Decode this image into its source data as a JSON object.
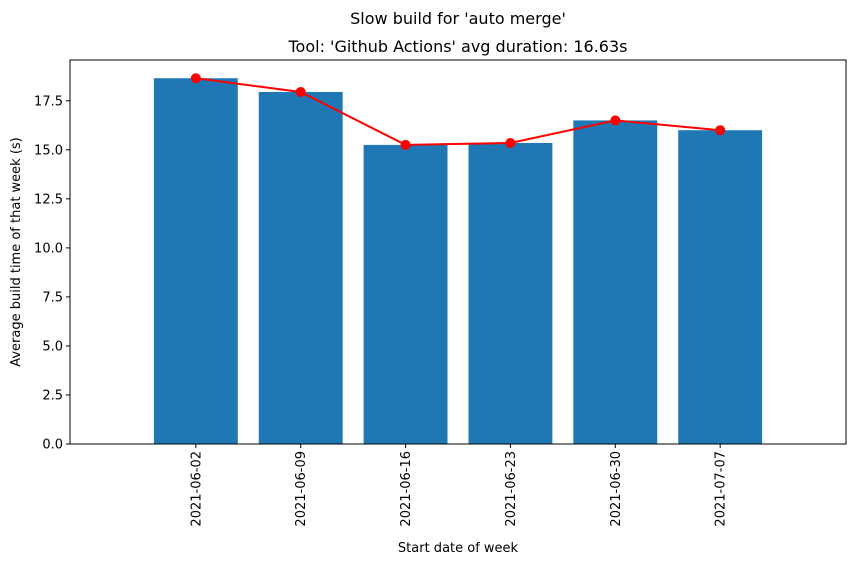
{
  "chart_data": {
    "type": "bar",
    "suptitle": "Slow build for 'auto merge'",
    "title": "Tool: 'Github Actions' avg duration: 16.63s",
    "xlabel": "Start date of week",
    "ylabel": "Average build time of that week (s)",
    "categories": [
      "2021-06-02",
      "2021-06-09",
      "2021-06-16",
      "2021-06-23",
      "2021-06-30",
      "2021-07-07"
    ],
    "series": [
      {
        "values": [
          18.65,
          17.95,
          15.25,
          15.35,
          16.5,
          16.0
        ],
        "kind": "bar",
        "color": "#1f77b4"
      },
      {
        "values": [
          18.65,
          17.95,
          15.25,
          15.35,
          16.5,
          16.0
        ],
        "kind": "line",
        "marker": "circle",
        "color": "#ff0000"
      }
    ],
    "ylim": [
      0,
      19.58
    ],
    "yticks": [
      0.0,
      2.5,
      5.0,
      7.5,
      10.0,
      12.5,
      15.0,
      17.5
    ],
    "ytick_labels": [
      "0.0",
      "2.5",
      "5.0",
      "7.5",
      "10.0",
      "12.5",
      "15.0",
      "17.5"
    ],
    "xtick_rotation": "vertical",
    "grid": false,
    "legend": "none"
  }
}
